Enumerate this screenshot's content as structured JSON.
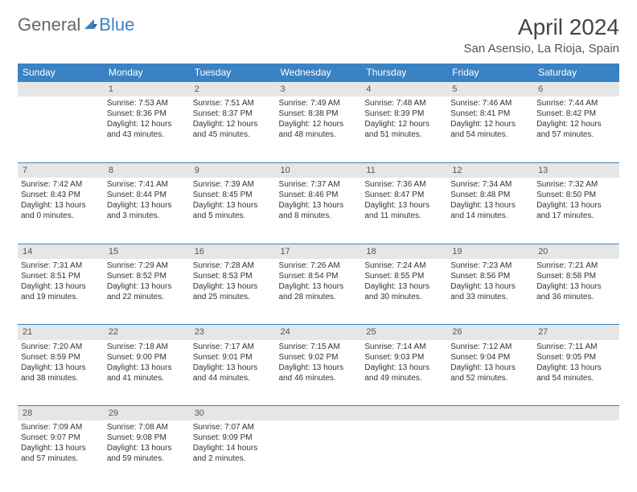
{
  "logo": {
    "general": "General",
    "blue": "Blue"
  },
  "header": {
    "month": "April 2024",
    "location": "San Asensio, La Rioja, Spain"
  },
  "weekdays": [
    "Sunday",
    "Monday",
    "Tuesday",
    "Wednesday",
    "Thursday",
    "Friday",
    "Saturday"
  ],
  "colors": {
    "header_bg": "#3b82c4",
    "header_text": "#ffffff",
    "daynum_bg": "#e6e6e6",
    "daynum_border": "#3b82c4",
    "body_text": "#333333",
    "title_text": "#444444"
  },
  "weeks": [
    {
      "nums": [
        "",
        "1",
        "2",
        "3",
        "4",
        "5",
        "6"
      ],
      "cells": [
        {
          "sunrise": "",
          "sunset": "",
          "daylight1": "",
          "daylight2": ""
        },
        {
          "sunrise": "Sunrise: 7:53 AM",
          "sunset": "Sunset: 8:36 PM",
          "daylight1": "Daylight: 12 hours",
          "daylight2": "and 43 minutes."
        },
        {
          "sunrise": "Sunrise: 7:51 AM",
          "sunset": "Sunset: 8:37 PM",
          "daylight1": "Daylight: 12 hours",
          "daylight2": "and 45 minutes."
        },
        {
          "sunrise": "Sunrise: 7:49 AM",
          "sunset": "Sunset: 8:38 PM",
          "daylight1": "Daylight: 12 hours",
          "daylight2": "and 48 minutes."
        },
        {
          "sunrise": "Sunrise: 7:48 AM",
          "sunset": "Sunset: 8:39 PM",
          "daylight1": "Daylight: 12 hours",
          "daylight2": "and 51 minutes."
        },
        {
          "sunrise": "Sunrise: 7:46 AM",
          "sunset": "Sunset: 8:41 PM",
          "daylight1": "Daylight: 12 hours",
          "daylight2": "and 54 minutes."
        },
        {
          "sunrise": "Sunrise: 7:44 AM",
          "sunset": "Sunset: 8:42 PM",
          "daylight1": "Daylight: 12 hours",
          "daylight2": "and 57 minutes."
        }
      ]
    },
    {
      "nums": [
        "7",
        "8",
        "9",
        "10",
        "11",
        "12",
        "13"
      ],
      "cells": [
        {
          "sunrise": "Sunrise: 7:42 AM",
          "sunset": "Sunset: 8:43 PM",
          "daylight1": "Daylight: 13 hours",
          "daylight2": "and 0 minutes."
        },
        {
          "sunrise": "Sunrise: 7:41 AM",
          "sunset": "Sunset: 8:44 PM",
          "daylight1": "Daylight: 13 hours",
          "daylight2": "and 3 minutes."
        },
        {
          "sunrise": "Sunrise: 7:39 AM",
          "sunset": "Sunset: 8:45 PM",
          "daylight1": "Daylight: 13 hours",
          "daylight2": "and 5 minutes."
        },
        {
          "sunrise": "Sunrise: 7:37 AM",
          "sunset": "Sunset: 8:46 PM",
          "daylight1": "Daylight: 13 hours",
          "daylight2": "and 8 minutes."
        },
        {
          "sunrise": "Sunrise: 7:36 AM",
          "sunset": "Sunset: 8:47 PM",
          "daylight1": "Daylight: 13 hours",
          "daylight2": "and 11 minutes."
        },
        {
          "sunrise": "Sunrise: 7:34 AM",
          "sunset": "Sunset: 8:48 PM",
          "daylight1": "Daylight: 13 hours",
          "daylight2": "and 14 minutes."
        },
        {
          "sunrise": "Sunrise: 7:32 AM",
          "sunset": "Sunset: 8:50 PM",
          "daylight1": "Daylight: 13 hours",
          "daylight2": "and 17 minutes."
        }
      ]
    },
    {
      "nums": [
        "14",
        "15",
        "16",
        "17",
        "18",
        "19",
        "20"
      ],
      "cells": [
        {
          "sunrise": "Sunrise: 7:31 AM",
          "sunset": "Sunset: 8:51 PM",
          "daylight1": "Daylight: 13 hours",
          "daylight2": "and 19 minutes."
        },
        {
          "sunrise": "Sunrise: 7:29 AM",
          "sunset": "Sunset: 8:52 PM",
          "daylight1": "Daylight: 13 hours",
          "daylight2": "and 22 minutes."
        },
        {
          "sunrise": "Sunrise: 7:28 AM",
          "sunset": "Sunset: 8:53 PM",
          "daylight1": "Daylight: 13 hours",
          "daylight2": "and 25 minutes."
        },
        {
          "sunrise": "Sunrise: 7:26 AM",
          "sunset": "Sunset: 8:54 PM",
          "daylight1": "Daylight: 13 hours",
          "daylight2": "and 28 minutes."
        },
        {
          "sunrise": "Sunrise: 7:24 AM",
          "sunset": "Sunset: 8:55 PM",
          "daylight1": "Daylight: 13 hours",
          "daylight2": "and 30 minutes."
        },
        {
          "sunrise": "Sunrise: 7:23 AM",
          "sunset": "Sunset: 8:56 PM",
          "daylight1": "Daylight: 13 hours",
          "daylight2": "and 33 minutes."
        },
        {
          "sunrise": "Sunrise: 7:21 AM",
          "sunset": "Sunset: 8:58 PM",
          "daylight1": "Daylight: 13 hours",
          "daylight2": "and 36 minutes."
        }
      ]
    },
    {
      "nums": [
        "21",
        "22",
        "23",
        "24",
        "25",
        "26",
        "27"
      ],
      "cells": [
        {
          "sunrise": "Sunrise: 7:20 AM",
          "sunset": "Sunset: 8:59 PM",
          "daylight1": "Daylight: 13 hours",
          "daylight2": "and 38 minutes."
        },
        {
          "sunrise": "Sunrise: 7:18 AM",
          "sunset": "Sunset: 9:00 PM",
          "daylight1": "Daylight: 13 hours",
          "daylight2": "and 41 minutes."
        },
        {
          "sunrise": "Sunrise: 7:17 AM",
          "sunset": "Sunset: 9:01 PM",
          "daylight1": "Daylight: 13 hours",
          "daylight2": "and 44 minutes."
        },
        {
          "sunrise": "Sunrise: 7:15 AM",
          "sunset": "Sunset: 9:02 PM",
          "daylight1": "Daylight: 13 hours",
          "daylight2": "and 46 minutes."
        },
        {
          "sunrise": "Sunrise: 7:14 AM",
          "sunset": "Sunset: 9:03 PM",
          "daylight1": "Daylight: 13 hours",
          "daylight2": "and 49 minutes."
        },
        {
          "sunrise": "Sunrise: 7:12 AM",
          "sunset": "Sunset: 9:04 PM",
          "daylight1": "Daylight: 13 hours",
          "daylight2": "and 52 minutes."
        },
        {
          "sunrise": "Sunrise: 7:11 AM",
          "sunset": "Sunset: 9:05 PM",
          "daylight1": "Daylight: 13 hours",
          "daylight2": "and 54 minutes."
        }
      ]
    },
    {
      "nums": [
        "28",
        "29",
        "30",
        "",
        "",
        "",
        ""
      ],
      "cells": [
        {
          "sunrise": "Sunrise: 7:09 AM",
          "sunset": "Sunset: 9:07 PM",
          "daylight1": "Daylight: 13 hours",
          "daylight2": "and 57 minutes."
        },
        {
          "sunrise": "Sunrise: 7:08 AM",
          "sunset": "Sunset: 9:08 PM",
          "daylight1": "Daylight: 13 hours",
          "daylight2": "and 59 minutes."
        },
        {
          "sunrise": "Sunrise: 7:07 AM",
          "sunset": "Sunset: 9:09 PM",
          "daylight1": "Daylight: 14 hours",
          "daylight2": "and 2 minutes."
        },
        {
          "sunrise": "",
          "sunset": "",
          "daylight1": "",
          "daylight2": ""
        },
        {
          "sunrise": "",
          "sunset": "",
          "daylight1": "",
          "daylight2": ""
        },
        {
          "sunrise": "",
          "sunset": "",
          "daylight1": "",
          "daylight2": ""
        },
        {
          "sunrise": "",
          "sunset": "",
          "daylight1": "",
          "daylight2": ""
        }
      ]
    }
  ]
}
